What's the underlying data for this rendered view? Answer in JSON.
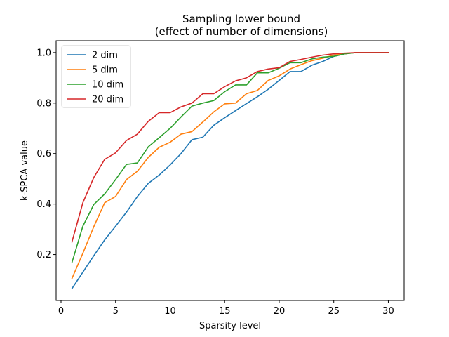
{
  "chart_data": {
    "type": "line",
    "title": "Sampling lower bound",
    "subtitle": "(effect of number of dimensions)",
    "xlabel": "Sparsity level",
    "ylabel": "k-SPCA value",
    "xlim": [
      -0.45,
      31.45
    ],
    "ylim": [
      0.018,
      1.047
    ],
    "xticks": [
      0,
      5,
      10,
      15,
      20,
      25,
      30
    ],
    "yticks": [
      0.2,
      0.4,
      0.6,
      0.8,
      1.0
    ],
    "xtick_labels": [
      "0",
      "5",
      "10",
      "15",
      "20",
      "25",
      "30"
    ],
    "ytick_labels": [
      "0.2",
      "0.4",
      "0.6",
      "0.8",
      "1.0"
    ],
    "grid": false,
    "legend_position": "top-left",
    "x": [
      1,
      2,
      3,
      4,
      5,
      6,
      7,
      8,
      9,
      10,
      11,
      12,
      13,
      14,
      15,
      16,
      17,
      18,
      19,
      20,
      21,
      22,
      23,
      24,
      25,
      26,
      27,
      28,
      29,
      30
    ],
    "series": [
      {
        "name": "2 dim",
        "color": "#1f77b4",
        "values": [
          0.065,
          0.13,
          0.195,
          0.258,
          0.312,
          0.368,
          0.43,
          0.482,
          0.515,
          0.555,
          0.6,
          0.655,
          0.665,
          0.712,
          0.742,
          0.77,
          0.798,
          0.825,
          0.855,
          0.89,
          0.925,
          0.925,
          0.95,
          0.965,
          0.985,
          0.995,
          1.0,
          1.0,
          1.0,
          1.0
        ]
      },
      {
        "name": "5 dim",
        "color": "#ff7f0e",
        "values": [
          0.105,
          0.205,
          0.31,
          0.405,
          0.43,
          0.497,
          0.53,
          0.585,
          0.625,
          0.645,
          0.677,
          0.687,
          0.725,
          0.765,
          0.797,
          0.8,
          0.837,
          0.85,
          0.89,
          0.908,
          0.935,
          0.952,
          0.968,
          0.978,
          0.99,
          0.995,
          1.0,
          1.0,
          1.0,
          1.0
        ]
      },
      {
        "name": "10 dim",
        "color": "#2ca02c",
        "values": [
          0.168,
          0.312,
          0.398,
          0.44,
          0.497,
          0.557,
          0.563,
          0.627,
          0.663,
          0.7,
          0.745,
          0.788,
          0.8,
          0.81,
          0.845,
          0.872,
          0.872,
          0.92,
          0.92,
          0.938,
          0.96,
          0.96,
          0.975,
          0.982,
          0.985,
          0.995,
          1.0,
          1.0,
          1.0,
          1.0
        ]
      },
      {
        "name": "20 dim",
        "color": "#d62728",
        "values": [
          0.25,
          0.405,
          0.505,
          0.577,
          0.603,
          0.652,
          0.677,
          0.728,
          0.762,
          0.762,
          0.785,
          0.8,
          0.837,
          0.837,
          0.865,
          0.888,
          0.9,
          0.925,
          0.935,
          0.94,
          0.965,
          0.973,
          0.982,
          0.99,
          0.995,
          0.998,
          1.0,
          1.0,
          1.0,
          1.0
        ]
      }
    ]
  }
}
